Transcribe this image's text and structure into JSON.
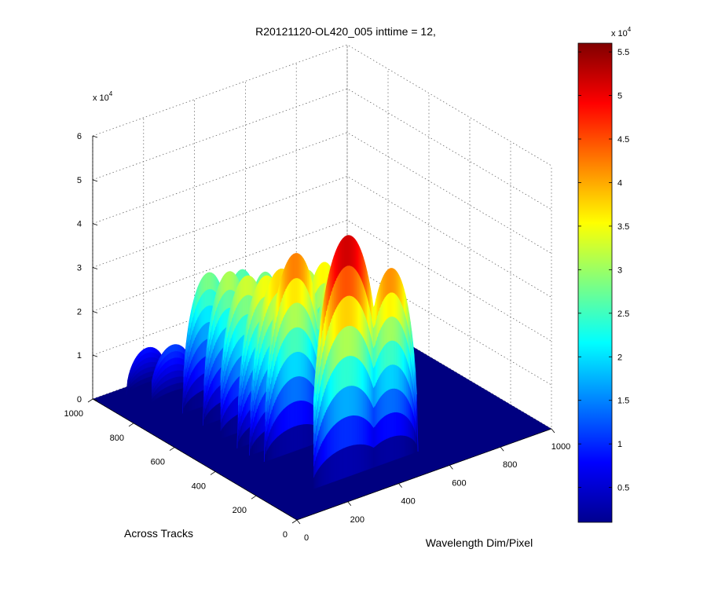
{
  "chart_data": {
    "type": "surface",
    "title": "R20121120-OL420_005 inttime = 12,",
    "xlabel": "Wavelength Dim/Pixel",
    "ylabel": "Across Tracks",
    "zlabel": "",
    "x_ticks": [
      "0",
      "200",
      "400",
      "600",
      "800",
      "1000"
    ],
    "y_ticks": [
      "0",
      "200",
      "400",
      "600",
      "800",
      "1000"
    ],
    "z_ticks": [
      "0",
      "1",
      "2",
      "3",
      "4",
      "5",
      "6"
    ],
    "z_exponent": "x 10",
    "z_exponent_power": "4",
    "xlim": [
      0,
      1000
    ],
    "ylim": [
      0,
      1000
    ],
    "zlim": [
      0,
      60000
    ],
    "grid": true,
    "colormap": "jet",
    "colorbar": {
      "range": [
        1000,
        56000
      ],
      "ticks": [
        "0.5",
        "1",
        "1.5",
        "2",
        "2.5",
        "3",
        "3.5",
        "4",
        "4.5",
        "5",
        "5.5"
      ],
      "tick_values": [
        5000,
        10000,
        15000,
        20000,
        25000,
        30000,
        35000,
        40000,
        45000,
        50000,
        55000
      ],
      "exponent": "x 10",
      "exponent_power": "4"
    },
    "series": [
      {
        "y": 130,
        "peak": 55000,
        "x_range": [
          170,
          600
        ],
        "lobes": [
          [
            300,
            55000,
            140
          ],
          [
            470,
            44000,
            110
          ]
        ]
      },
      {
        "y": 360,
        "peak": 45000,
        "x_range": [
          150,
          620
        ],
        "lobes": [
          [
            280,
            45000,
            120
          ],
          [
            450,
            40000,
            110
          ]
        ]
      },
      {
        "y": 420,
        "peak": 40000,
        "x_range": [
          150,
          600
        ],
        "lobes": [
          [
            270,
            40000,
            120
          ],
          [
            440,
            38000,
            100
          ]
        ]
      },
      {
        "y": 480,
        "peak": 37000,
        "x_range": [
          150,
          580
        ],
        "lobes": [
          [
            260,
            37000,
            110
          ],
          [
            420,
            35000,
            100
          ]
        ]
      },
      {
        "y": 560,
        "peak": 35000,
        "x_range": [
          150,
          560
        ],
        "lobes": [
          [
            250,
            35000,
            110
          ],
          [
            410,
            32000,
            100
          ]
        ]
      },
      {
        "y": 660,
        "peak": 33000,
        "x_range": [
          160,
          520
        ],
        "lobes": [
          [
            260,
            33000,
            100
          ],
          [
            400,
            30000,
            90
          ]
        ]
      },
      {
        "y": 760,
        "peak": 30000,
        "x_range": [
          160,
          500
        ],
        "lobes": [
          [
            260,
            30000,
            100
          ],
          [
            390,
            28000,
            90
          ]
        ]
      },
      {
        "y": 860,
        "peak": 12000,
        "x_range": [
          120,
          400
        ],
        "lobes": [
          [
            200,
            12000,
            90
          ],
          [
            320,
            10000,
            80
          ]
        ]
      },
      {
        "y": 960,
        "peak": 9000,
        "x_range": [
          100,
          300
        ],
        "lobes": [
          [
            180,
            9000,
            80
          ]
        ]
      }
    ]
  }
}
